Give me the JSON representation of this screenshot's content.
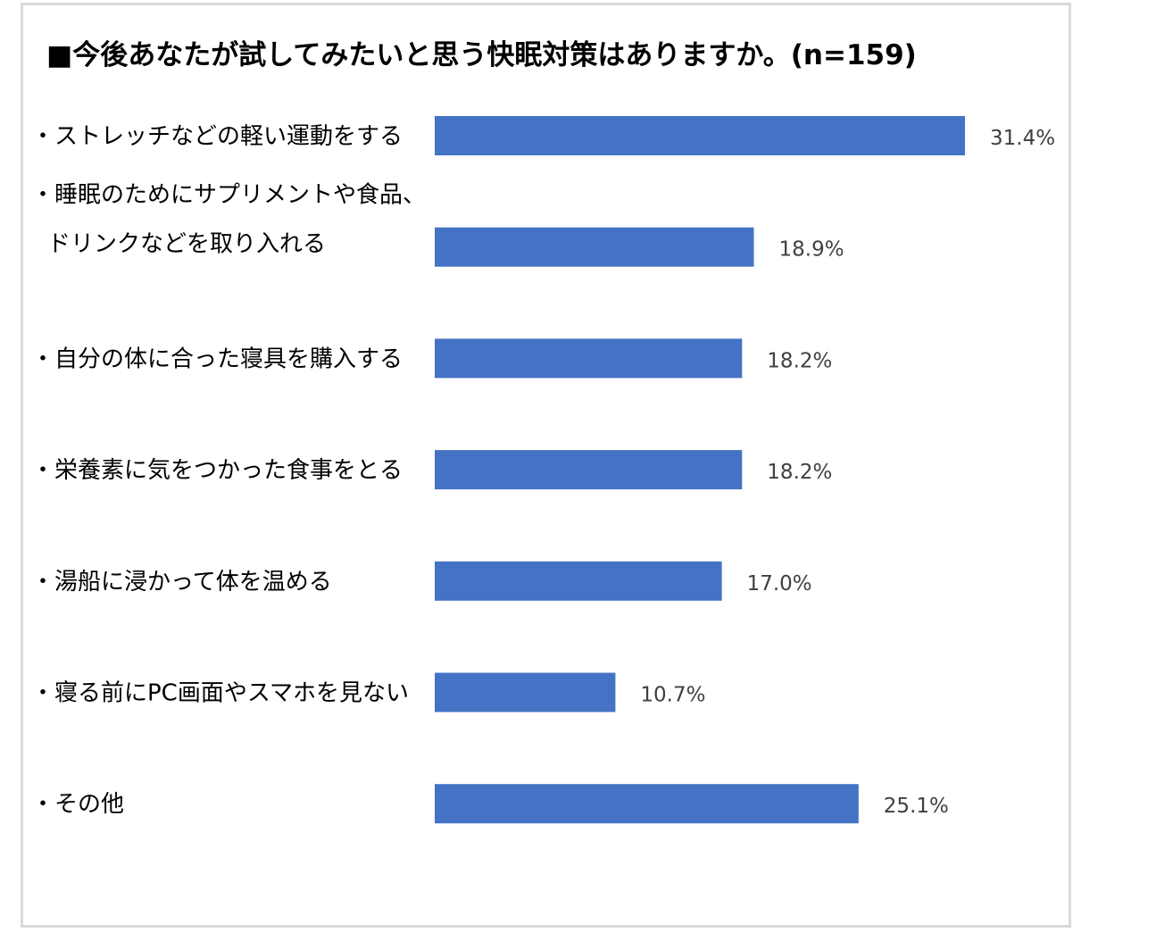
{
  "title": "■今後あなたが試してみたいと思う快眠対策はありますか。(n=159)",
  "chart_data": {
    "type": "bar",
    "orientation": "horizontal",
    "title": "■今後あなたが試してみたいと思う快眠対策はありますか。(n=159)",
    "categories": [
      [
        "・ストレッチなどの軽い運動をする"
      ],
      [
        "・睡眠のためにサプリメントや食品、",
        "ドリンクなどを取り入れる"
      ],
      [
        "・自分の体に合った寝具を購入する"
      ],
      [
        "・栄養素に気をつかった食事をとる"
      ],
      [
        "・湯船に浸かって体を温める"
      ],
      [
        "・寝る前にPC画面やスマホを見ない"
      ],
      [
        "・その他"
      ]
    ],
    "values": [
      31.4,
      18.9,
      18.2,
      18.2,
      17.0,
      10.7,
      25.1
    ],
    "value_labels": [
      "31.4%",
      "18.9%",
      "18.2%",
      "18.2%",
      "17.0%",
      "10.7%",
      "25.1%"
    ],
    "unit": "%",
    "bar_color": "#4472C4",
    "xlim": [
      0,
      31.4
    ],
    "grid": false,
    "legend": "none"
  }
}
